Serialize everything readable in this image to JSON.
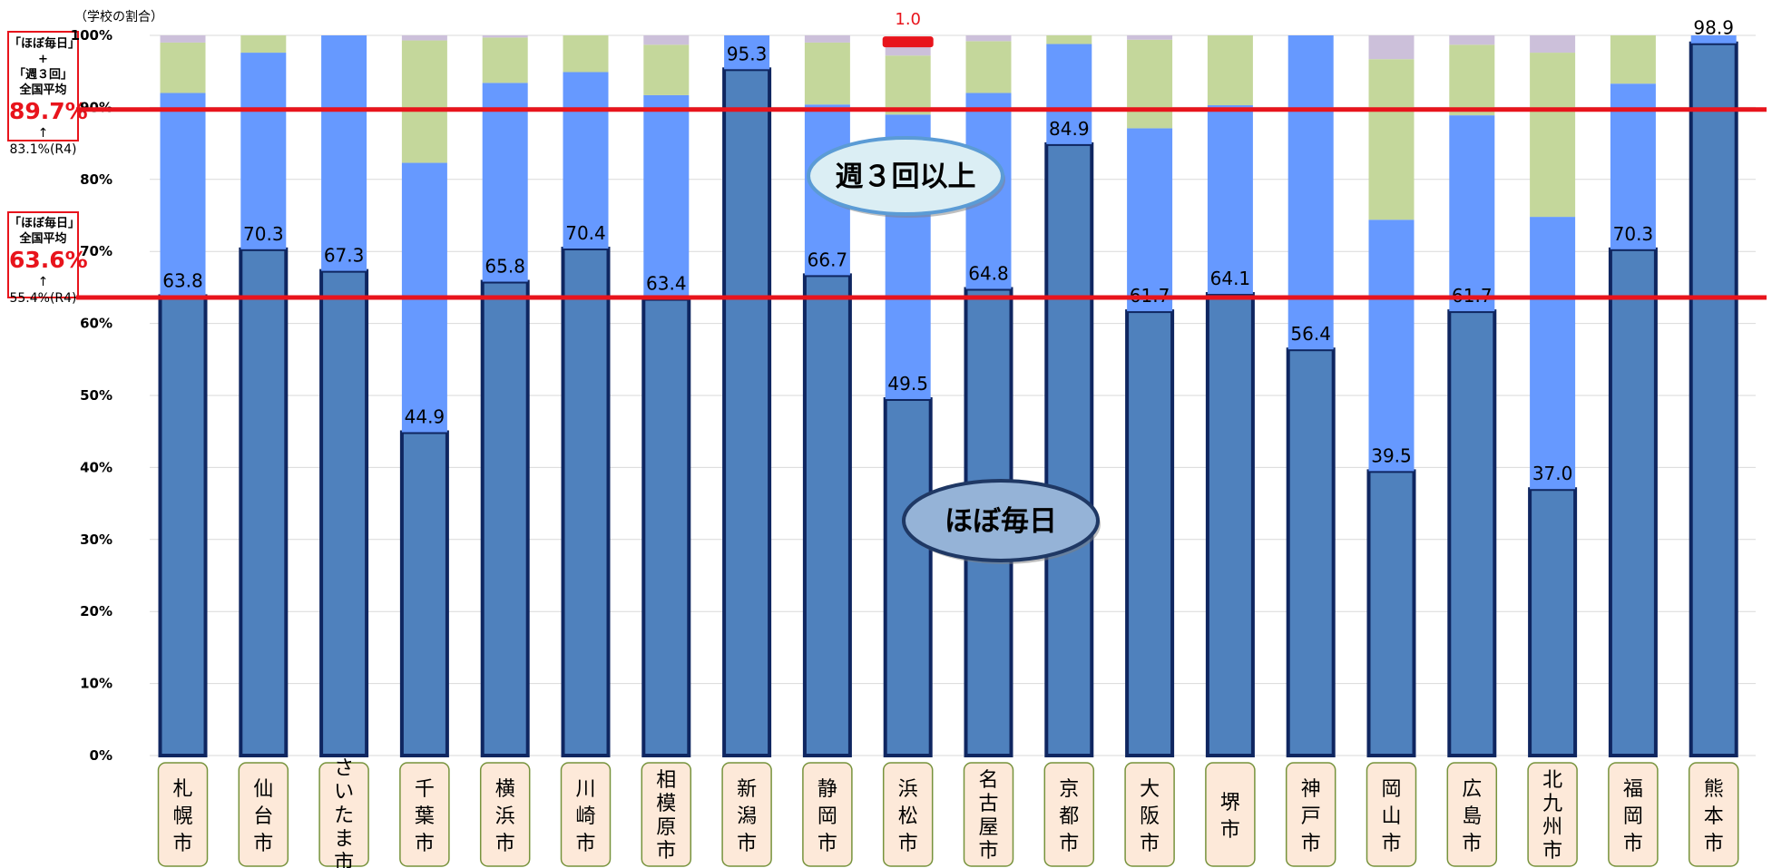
{
  "unit_label": "（学校の割合）",
  "note_combined": {
    "line1": "「ほぼ毎日」",
    "line2": "+",
    "line3": "「週３回」",
    "line4": "全国平均",
    "value": "89.7%",
    "arrow": "↑",
    "prev": "83.1%(R4)"
  },
  "note_daily": {
    "line1": "「ほぼ毎日」",
    "line2": "全国平均",
    "value": "63.6%",
    "arrow": "↑",
    "prev": "55.4%(R4)"
  },
  "callouts": {
    "weekly3": "週３回以上",
    "daily": "ほぼ毎日"
  },
  "colors": {
    "daily": "#4f81bd",
    "daily_border": "#0f2660",
    "weekly3": "#6699ff",
    "weekly12": "#c4d79b",
    "other": "#ccc0da",
    "reference_line": "#e8141c",
    "city_box_fill": "#fde9d9",
    "city_box_border": "#77933c"
  },
  "chart_data": {
    "type": "bar",
    "stacked": true,
    "categories": [
      "札幌市",
      "仙台市",
      "さいたま市",
      "千葉市",
      "横浜市",
      "川崎市",
      "相模原市",
      "新潟市",
      "静岡市",
      "浜松市",
      "名古屋市",
      "京都市",
      "大阪市",
      "堺市",
      "神戸市",
      "岡山市",
      "広島市",
      "北九州市",
      "福岡市",
      "熊本市"
    ],
    "series": [
      {
        "key": "daily",
        "values": [
          63.8,
          70.3,
          67.3,
          44.9,
          65.8,
          70.4,
          63.4,
          95.3,
          66.7,
          49.5,
          64.8,
          84.9,
          61.7,
          64.1,
          56.4,
          39.5,
          61.7,
          37.0,
          70.3,
          98.9
        ]
      },
      {
        "key": "weekly3",
        "values": [
          28.2,
          27.3,
          32.7,
          37.4,
          27.6,
          24.5,
          28.3,
          4.7,
          23.7,
          39.5,
          27.2,
          13.9,
          25.4,
          26.2,
          43.6,
          34.9,
          27.2,
          37.8,
          23.0,
          1.1
        ]
      },
      {
        "key": "weekly12",
        "values": [
          7.0,
          2.4,
          0.0,
          17.0,
          6.3,
          5.1,
          7.0,
          0.0,
          8.6,
          8.2,
          7.2,
          1.2,
          12.3,
          9.7,
          0.0,
          22.3,
          9.8,
          22.8,
          6.7,
          0.0
        ]
      },
      {
        "key": "other",
        "values": [
          1.0,
          0.0,
          0.0,
          0.7,
          0.3,
          0.0,
          1.3,
          0.0,
          1.0,
          1.8,
          0.8,
          0.0,
          0.6,
          0.0,
          0.0,
          3.3,
          1.3,
          2.4,
          0.0,
          0.0
        ]
      }
    ],
    "data_labels": [
      "63.8",
      "70.3",
      "67.3",
      "44.9",
      "65.8",
      "70.4",
      "63.4",
      "95.3",
      "66.7",
      "49.5",
      "64.8",
      "84.9",
      "61.7",
      "64.1",
      "56.4",
      "39.5",
      "61.7",
      "37.0",
      "70.3",
      "98.9"
    ],
    "highlight": {
      "category": "浜松市",
      "value": 97.0,
      "label": "1.0"
    },
    "y_ticks": [
      "0%",
      "10%",
      "20%",
      "30%",
      "40%",
      "50%",
      "60%",
      "70%",
      "80%",
      "90%",
      "100%"
    ],
    "ylim": [
      0,
      100
    ],
    "reference_lines": [
      {
        "value": 89.7
      },
      {
        "value": 63.6
      }
    ],
    "grid": true
  }
}
